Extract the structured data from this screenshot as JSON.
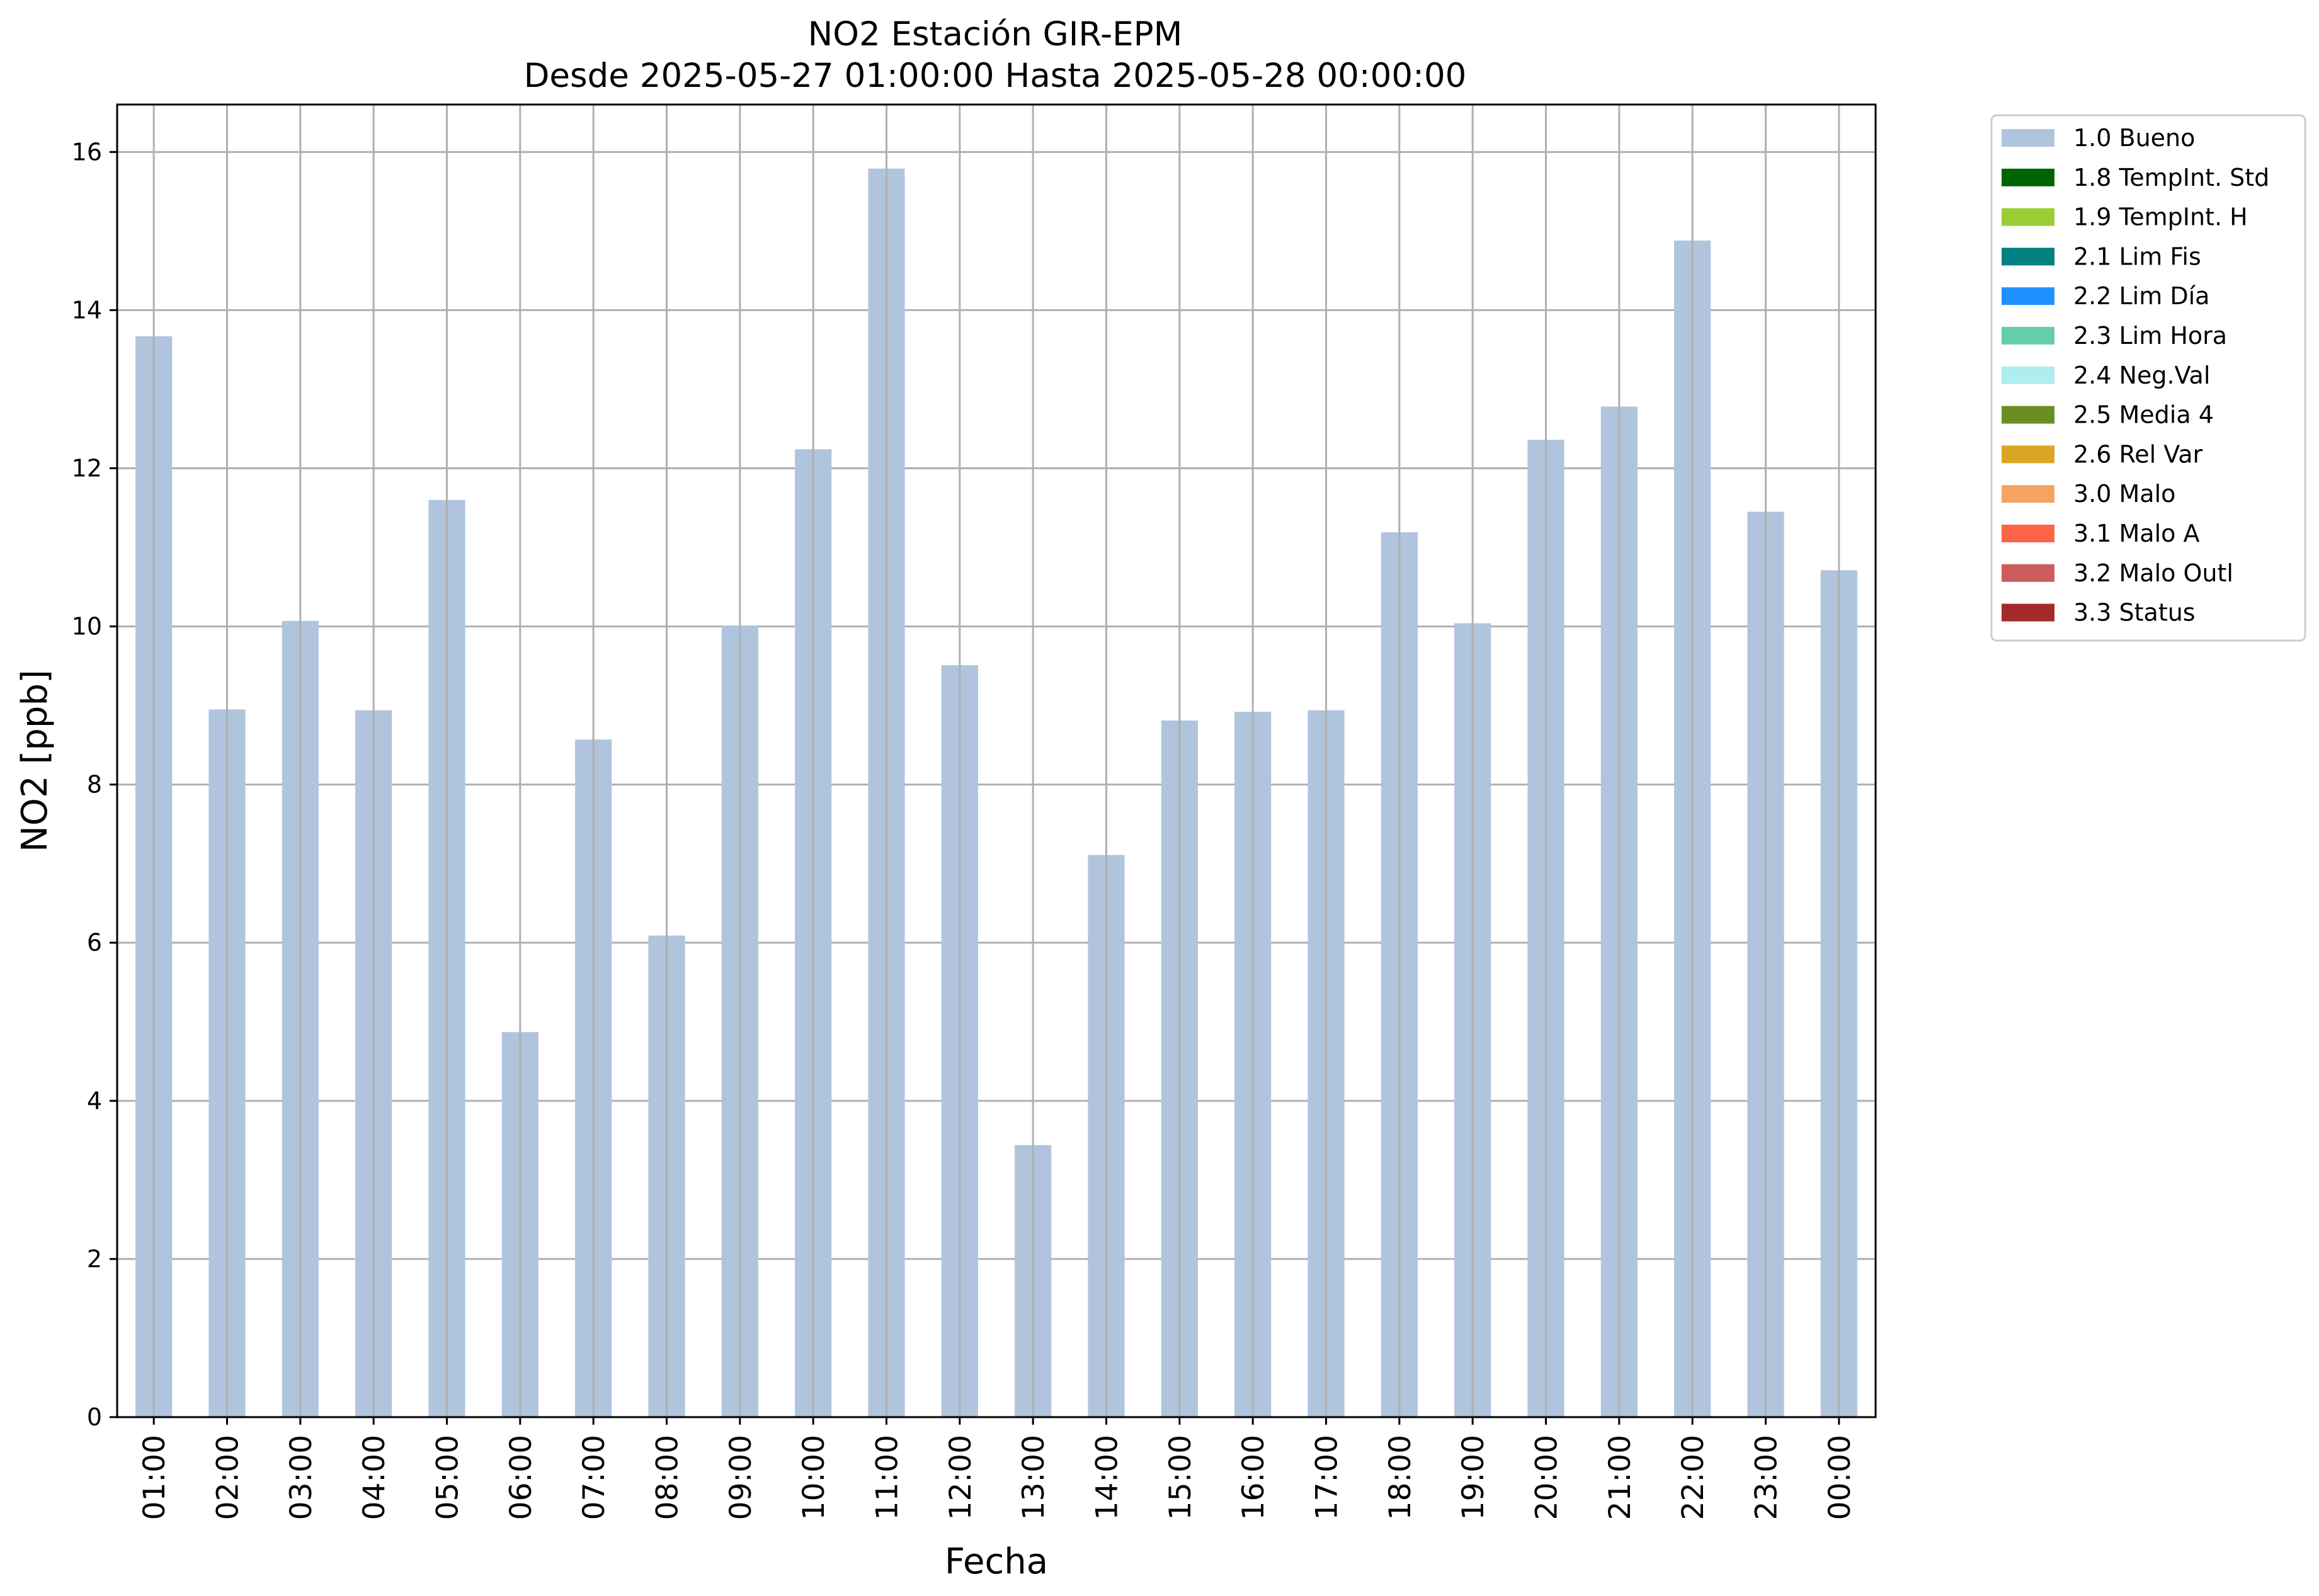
{
  "chart_data": {
    "type": "bar",
    "title": "NO2 Estación GIR-EPM",
    "subtitle": "Desde 2025-05-27 01:00:00 Hasta 2025-05-28 00:00:00",
    "xlabel": "Fecha",
    "ylabel": "NO2 [ppb]",
    "ylim": [
      0,
      16.6
    ],
    "yticks": [
      0,
      2,
      4,
      6,
      8,
      10,
      12,
      14,
      16
    ],
    "grid": true,
    "legend_position": "outside-top-right",
    "categories": [
      "01:00",
      "02:00",
      "03:00",
      "04:00",
      "05:00",
      "06:00",
      "07:00",
      "08:00",
      "09:00",
      "10:00",
      "11:00",
      "12:00",
      "13:00",
      "14:00",
      "15:00",
      "16:00",
      "17:00",
      "18:00",
      "19:00",
      "20:00",
      "21:00",
      "22:00",
      "23:00",
      "00:00"
    ],
    "series": [
      {
        "name": "1.0 Bueno",
        "color": "#b0c4de",
        "values": [
          13.67,
          8.95,
          10.07,
          8.94,
          11.6,
          4.87,
          8.57,
          6.09,
          10.01,
          12.24,
          15.79,
          9.51,
          3.44,
          7.11,
          8.81,
          8.92,
          8.94,
          11.19,
          10.04,
          12.36,
          12.78,
          14.88,
          11.45,
          10.71
        ]
      }
    ],
    "legend": [
      {
        "label": "1.0 Bueno",
        "color": "#b0c4de"
      },
      {
        "label": "1.8 TempInt. Std",
        "color": "#006400"
      },
      {
        "label": "1.9 TempInt. H",
        "color": "#9acd32"
      },
      {
        "label": "2.1 Lim Fis",
        "color": "#008080"
      },
      {
        "label": "2.2 Lim Día",
        "color": "#1e90ff"
      },
      {
        "label": "2.3 Lim Hora",
        "color": "#66cdaa"
      },
      {
        "label": "2.4 Neg.Val",
        "color": "#afeeee"
      },
      {
        "label": "2.5 Media 4",
        "color": "#6b8e23"
      },
      {
        "label": "2.6 Rel Var",
        "color": "#daa520"
      },
      {
        "label": "3.0 Malo",
        "color": "#f4a460"
      },
      {
        "label": "3.1 Malo A",
        "color": "#ff6347"
      },
      {
        "label": "3.2 Malo Outl",
        "color": "#cd5c5c"
      },
      {
        "label": "3.3 Status",
        "color": "#a52a2a"
      }
    ]
  }
}
